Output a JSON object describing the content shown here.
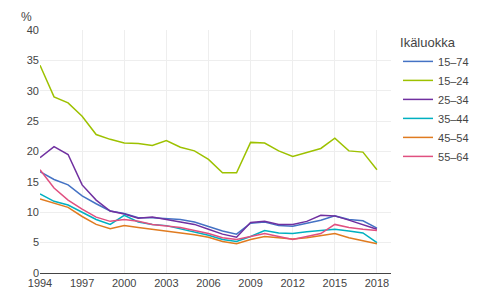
{
  "chart_data": {
    "type": "line",
    "ylabel": "%",
    "legend_title": "Ikäluokka",
    "x": [
      1994,
      1995,
      1996,
      1997,
      1998,
      1999,
      2000,
      2001,
      2002,
      2003,
      2004,
      2005,
      2006,
      2007,
      2008,
      2009,
      2010,
      2011,
      2012,
      2013,
      2014,
      2015,
      2016,
      2017,
      2018
    ],
    "series": [
      {
        "name": "15–74",
        "color": "#4472c4",
        "values": [
          16.7,
          15.4,
          14.5,
          12.7,
          11.4,
          10.2,
          9.8,
          9.1,
          9.1,
          9.0,
          8.8,
          8.4,
          7.7,
          6.9,
          6.4,
          8.2,
          8.4,
          7.8,
          7.7,
          8.2,
          8.7,
          9.4,
          8.8,
          8.6,
          7.4
        ]
      },
      {
        "name": "15–24",
        "color": "#9dc100",
        "values": [
          34.2,
          29.0,
          28.0,
          25.8,
          22.8,
          22.0,
          21.4,
          21.3,
          21.0,
          21.8,
          20.7,
          20.1,
          18.7,
          16.5,
          16.5,
          21.5,
          21.4,
          20.1,
          19.2,
          19.9,
          20.5,
          22.2,
          20.1,
          19.9,
          17.0
        ]
      },
      {
        "name": "25–34",
        "color": "#7030a0",
        "values": [
          19.0,
          20.8,
          19.5,
          14.5,
          12.0,
          10.2,
          9.7,
          9.0,
          9.2,
          8.8,
          8.5,
          8.0,
          7.2,
          6.4,
          5.9,
          8.3,
          8.5,
          8.0,
          8.0,
          8.5,
          9.5,
          9.4,
          8.7,
          8.0,
          7.2
        ]
      },
      {
        "name": "35–44",
        "color": "#00b0c0",
        "values": [
          13.0,
          11.8,
          11.2,
          10.0,
          8.8,
          8.0,
          9.5,
          8.4,
          8.0,
          7.8,
          7.3,
          6.8,
          6.2,
          5.5,
          5.2,
          6.0,
          7.0,
          6.6,
          6.5,
          6.8,
          7.0,
          7.2,
          6.9,
          6.6,
          5.0
        ]
      },
      {
        "name": "45–54",
        "color": "#e07b20",
        "values": [
          12.2,
          11.5,
          10.8,
          9.3,
          8.0,
          7.3,
          7.8,
          7.5,
          7.2,
          7.0,
          6.7,
          6.3,
          5.9,
          5.2,
          4.8,
          5.5,
          6.0,
          5.8,
          5.6,
          5.8,
          6.2,
          6.5,
          5.8,
          5.3,
          4.8
        ]
      },
      {
        "name": "55–64",
        "color": "#e05080",
        "values": [
          17.0,
          14.0,
          12.0,
          10.5,
          9.2,
          8.5,
          8.8,
          8.5,
          8.0,
          7.8,
          7.5,
          7.0,
          6.5,
          5.8,
          5.5,
          6.0,
          6.5,
          6.0,
          5.5,
          6.0,
          6.5,
          8.0,
          7.5,
          7.2,
          7.0
        ]
      }
    ],
    "xlim": [
      1994,
      2019
    ],
    "xticks": [
      1994,
      1997,
      2000,
      2003,
      2006,
      2009,
      2012,
      2015,
      2018
    ],
    "ylim": [
      0,
      40
    ],
    "yticks": [
      0,
      5,
      10,
      15,
      20,
      25,
      30,
      35,
      40
    ],
    "grid": true
  }
}
